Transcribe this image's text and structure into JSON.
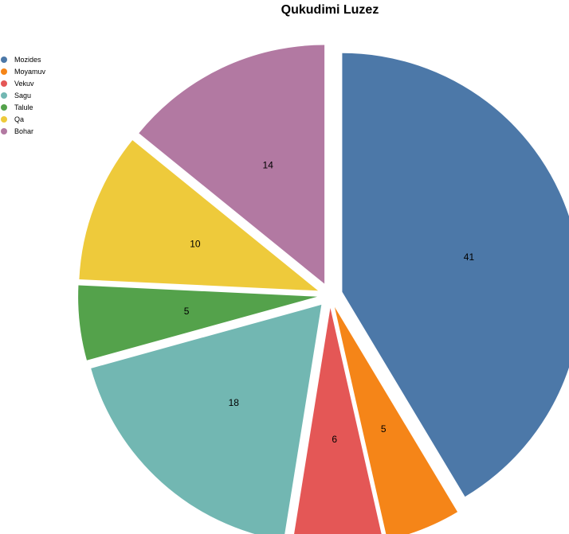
{
  "chart_data": {
    "type": "pie",
    "title": "Qukudimi Luzez",
    "categories": [
      "Mozides",
      "Moyamuv",
      "Vekuv",
      "Sagu",
      "Talule",
      "Qa",
      "Bohar"
    ],
    "values": [
      41,
      5,
      6,
      18,
      5,
      10,
      14
    ],
    "colors": [
      "#4c78a8",
      "#f58518",
      "#e45756",
      "#72b7b2",
      "#54a24b",
      "#eeca3b",
      "#b279a2"
    ],
    "legend": "left",
    "exploded": true
  }
}
